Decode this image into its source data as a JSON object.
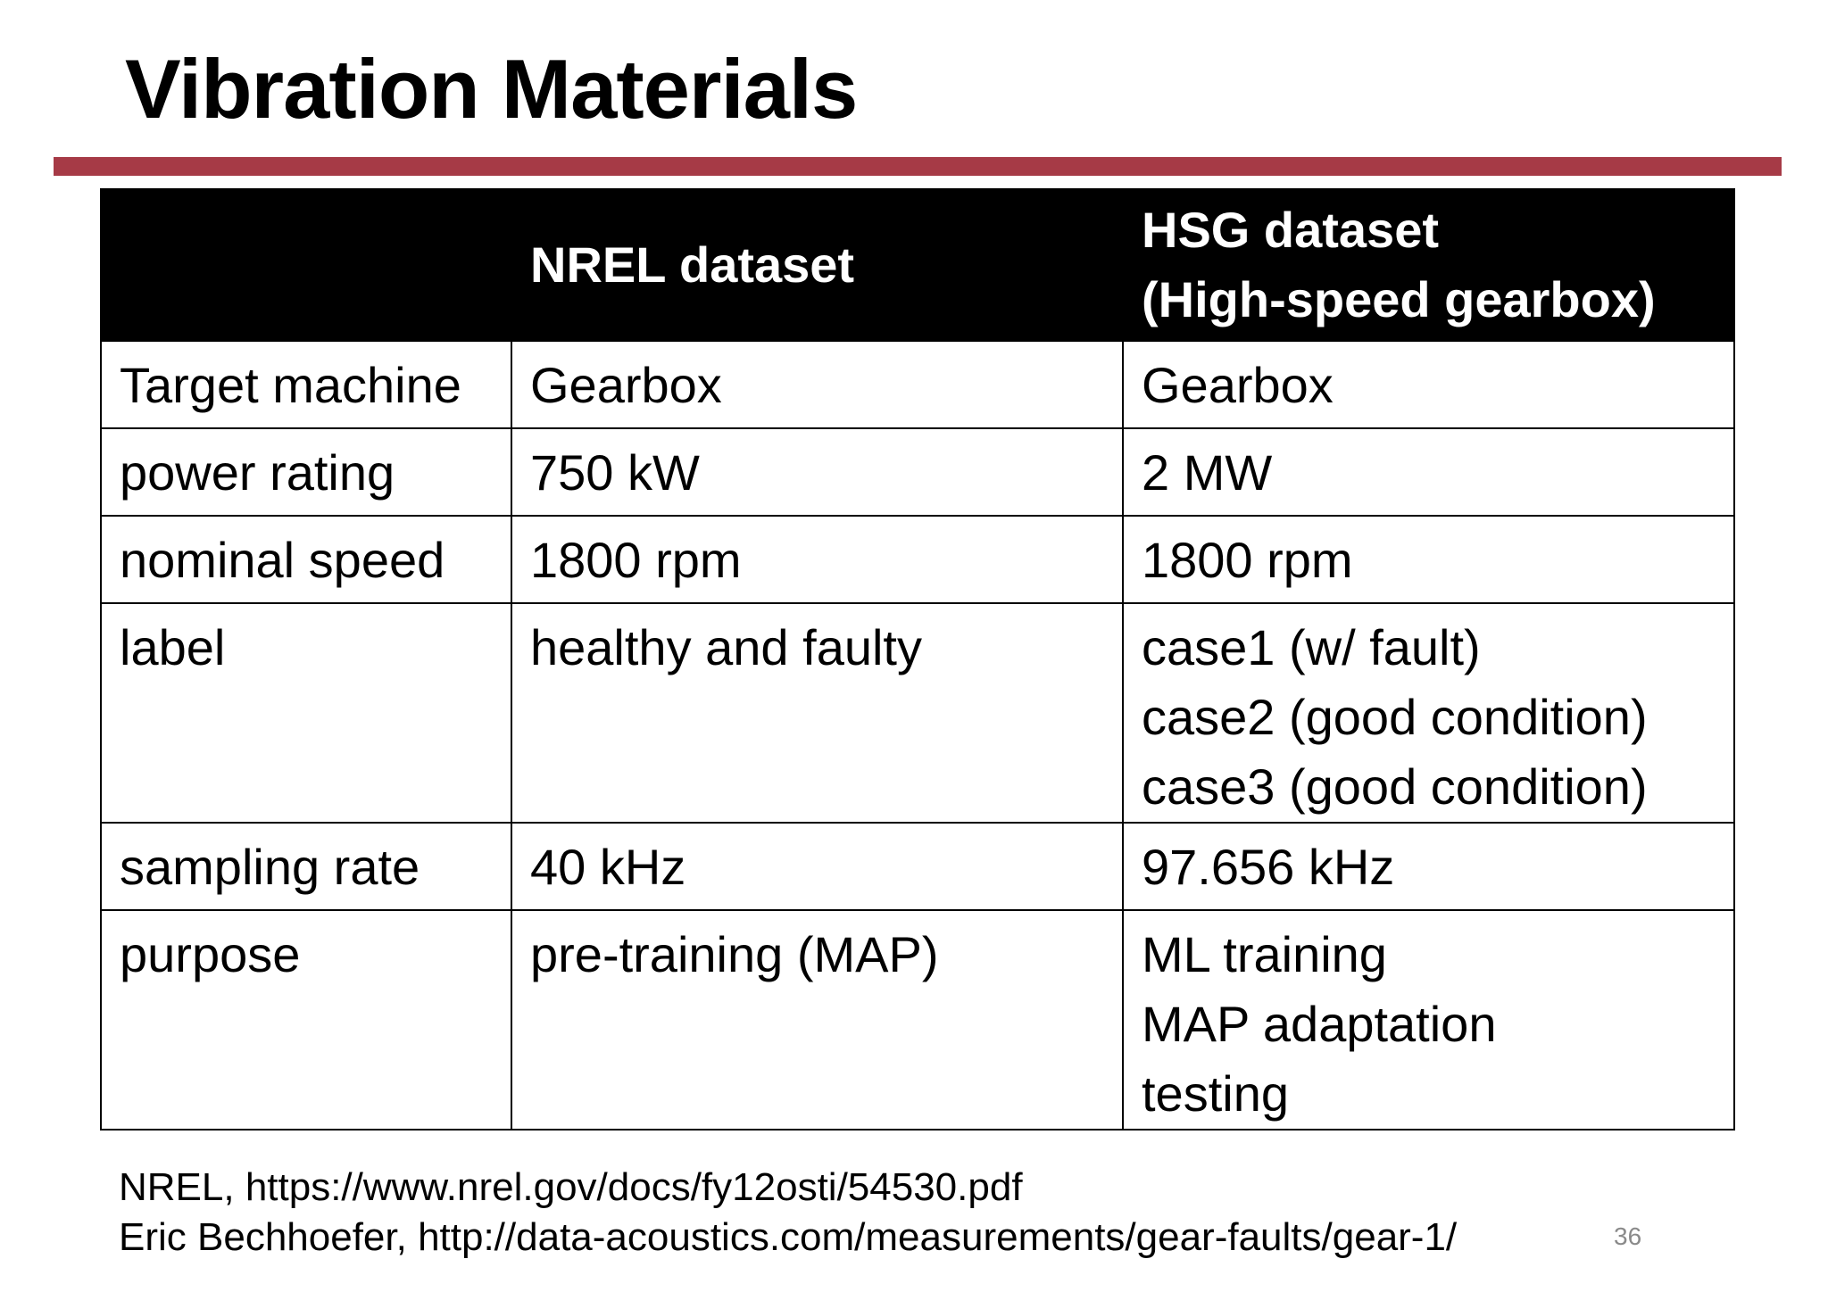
{
  "slide": {
    "title": "Vibration Materials",
    "page_number": "36",
    "accent_color": "#a63a46"
  },
  "table": {
    "headers": {
      "empty": "",
      "nrel": "NREL dataset",
      "hsg_line1": "HSG dataset",
      "hsg_line2": "(High-speed gearbox)"
    },
    "rows": [
      {
        "label": "Target machine",
        "nrel": [
          "Gearbox"
        ],
        "hsg": [
          "Gearbox"
        ]
      },
      {
        "label": "power rating",
        "nrel": [
          "750 kW"
        ],
        "hsg": [
          "2 MW"
        ]
      },
      {
        "label": "nominal speed",
        "nrel": [
          "1800 rpm"
        ],
        "hsg": [
          "1800 rpm"
        ]
      },
      {
        "label": "label",
        "nrel": [
          "healthy and faulty"
        ],
        "hsg": [
          "case1 (w/ fault)",
          "case2 (good condition)",
          "case3 (good condition)"
        ]
      },
      {
        "label": "sampling rate",
        "nrel": [
          "40 kHz"
        ],
        "hsg": [
          "97.656 kHz"
        ]
      },
      {
        "label": "purpose",
        "nrel": [
          "pre-training (MAP)"
        ],
        "hsg": [
          "ML training",
          "MAP adaptation",
          "testing"
        ]
      }
    ]
  },
  "footnotes": [
    "NREL, https://www.nrel.gov/docs/fy12osti/54530.pdf",
    "Eric Bechhoefer, http://data-acoustics.com/measurements/gear-faults/gear-1/"
  ]
}
